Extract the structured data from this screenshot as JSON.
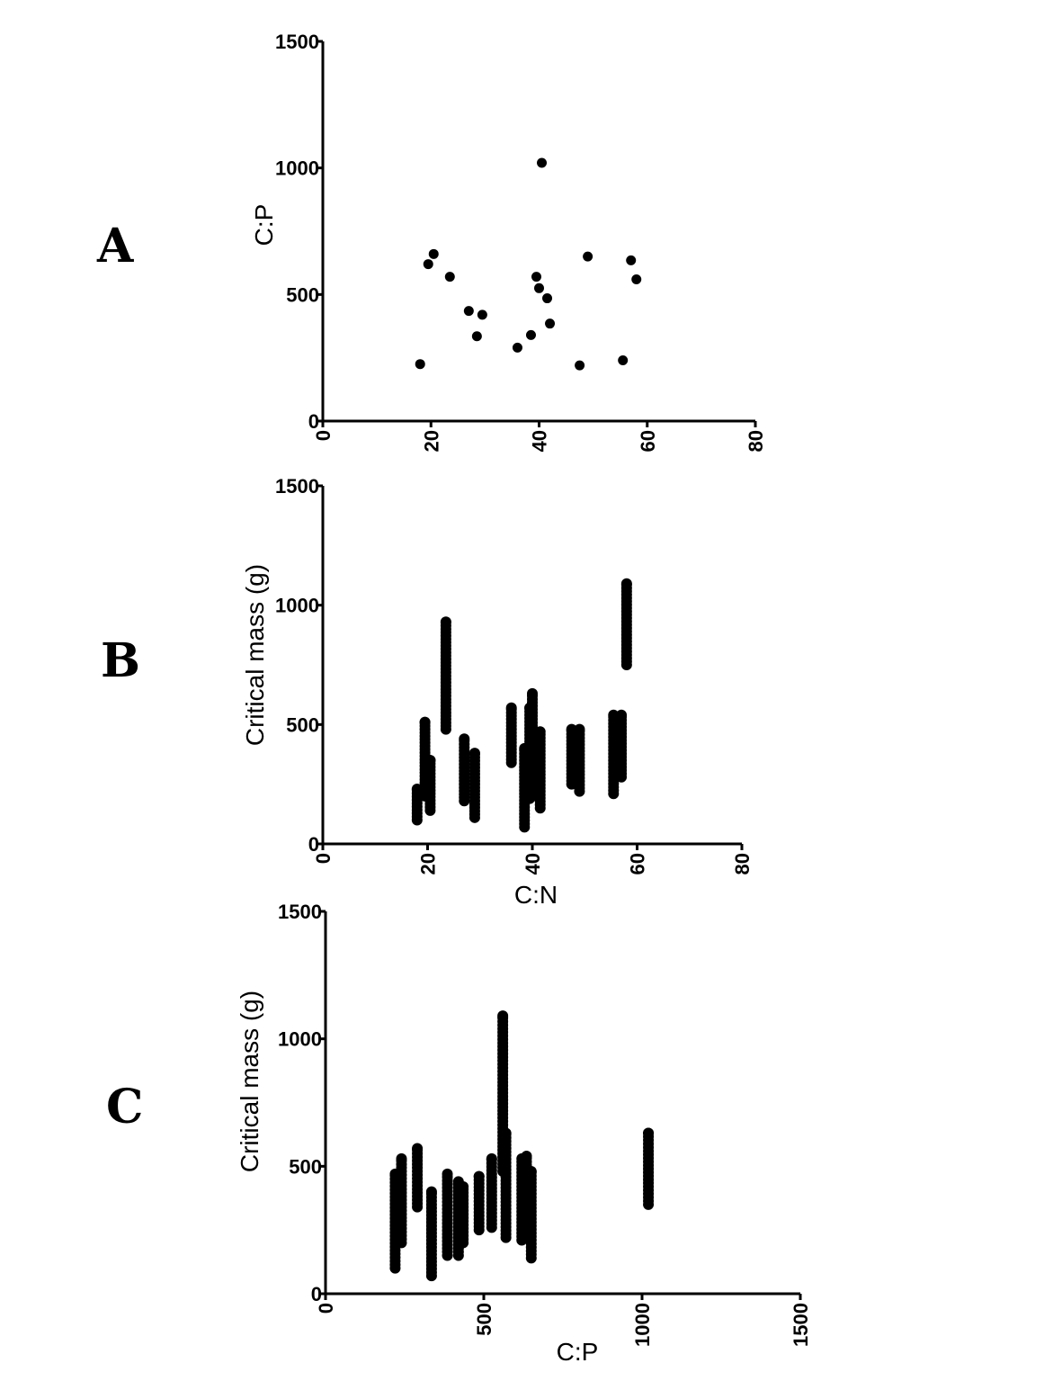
{
  "chart_data": [
    {
      "panel": "A",
      "type": "scatter",
      "xlabel": "",
      "ylabel": "C:P",
      "xlim": [
        0,
        80
      ],
      "ylim": [
        0,
        1500
      ],
      "xticks": [
        "0",
        "20",
        "40",
        "60",
        "80"
      ],
      "yticks": [
        "0",
        "500",
        "1000",
        "1500"
      ],
      "points": [
        [
          18,
          225
        ],
        [
          19.5,
          620
        ],
        [
          20.5,
          660
        ],
        [
          23.5,
          570
        ],
        [
          27,
          435
        ],
        [
          28.5,
          335
        ],
        [
          29.5,
          420
        ],
        [
          36,
          290
        ],
        [
          38.5,
          340
        ],
        [
          39.5,
          570
        ],
        [
          40,
          525
        ],
        [
          40.5,
          1020
        ],
        [
          41.5,
          485
        ],
        [
          42,
          385
        ],
        [
          47.5,
          220
        ],
        [
          49,
          650
        ],
        [
          55.5,
          240
        ],
        [
          57,
          635
        ],
        [
          58,
          560
        ]
      ]
    },
    {
      "panel": "B",
      "type": "scatter",
      "xlabel": "C:N",
      "ylabel": "Critical mass (g)",
      "xlim": [
        0,
        80
      ],
      "ylim": [
        0,
        1500
      ],
      "xticks": [
        "0",
        "20",
        "40",
        "60",
        "80"
      ],
      "yticks": [
        "0",
        "500",
        "1000",
        "1500"
      ],
      "columns": [
        {
          "x": 18,
          "min": 100,
          "max": 230
        },
        {
          "x": 19.5,
          "min": 200,
          "max": 510
        },
        {
          "x": 20.5,
          "min": 140,
          "max": 350
        },
        {
          "x": 23.5,
          "min": 480,
          "max": 930
        },
        {
          "x": 27,
          "min": 180,
          "max": 440
        },
        {
          "x": 29,
          "min": 110,
          "max": 380
        },
        {
          "x": 36,
          "min": 340,
          "max": 570
        },
        {
          "x": 38.5,
          "min": 70,
          "max": 400
        },
        {
          "x": 39.5,
          "min": 190,
          "max": 570
        },
        {
          "x": 40,
          "min": 200,
          "max": 630
        },
        {
          "x": 41.5,
          "min": 150,
          "max": 470
        },
        {
          "x": 47.5,
          "min": 250,
          "max": 480
        },
        {
          "x": 49,
          "min": 220,
          "max": 480
        },
        {
          "x": 55.5,
          "min": 210,
          "max": 540
        },
        {
          "x": 57,
          "min": 280,
          "max": 540
        },
        {
          "x": 58,
          "min": 750,
          "max": 1090
        }
      ]
    },
    {
      "panel": "C",
      "type": "scatter",
      "xlabel": "C:P",
      "ylabel": "Critical mass (g)",
      "xlim": [
        0,
        1500
      ],
      "ylim": [
        0,
        1500
      ],
      "xticks": [
        "0",
        "500",
        "1000",
        "1500"
      ],
      "yticks": [
        "0",
        "500",
        "1000",
        "1500"
      ],
      "columns": [
        {
          "x": 220,
          "min": 100,
          "max": 470
        },
        {
          "x": 240,
          "min": 200,
          "max": 530
        },
        {
          "x": 290,
          "min": 340,
          "max": 570
        },
        {
          "x": 335,
          "min": 70,
          "max": 400
        },
        {
          "x": 385,
          "min": 150,
          "max": 470
        },
        {
          "x": 420,
          "min": 150,
          "max": 440
        },
        {
          "x": 435,
          "min": 200,
          "max": 420
        },
        {
          "x": 485,
          "min": 250,
          "max": 460
        },
        {
          "x": 525,
          "min": 260,
          "max": 530
        },
        {
          "x": 560,
          "min": 480,
          "max": 1090
        },
        {
          "x": 570,
          "min": 220,
          "max": 630
        },
        {
          "x": 620,
          "min": 210,
          "max": 530
        },
        {
          "x": 635,
          "min": 280,
          "max": 540
        },
        {
          "x": 650,
          "min": 140,
          "max": 480
        },
        {
          "x": 1020,
          "min": 350,
          "max": 630
        }
      ]
    }
  ]
}
